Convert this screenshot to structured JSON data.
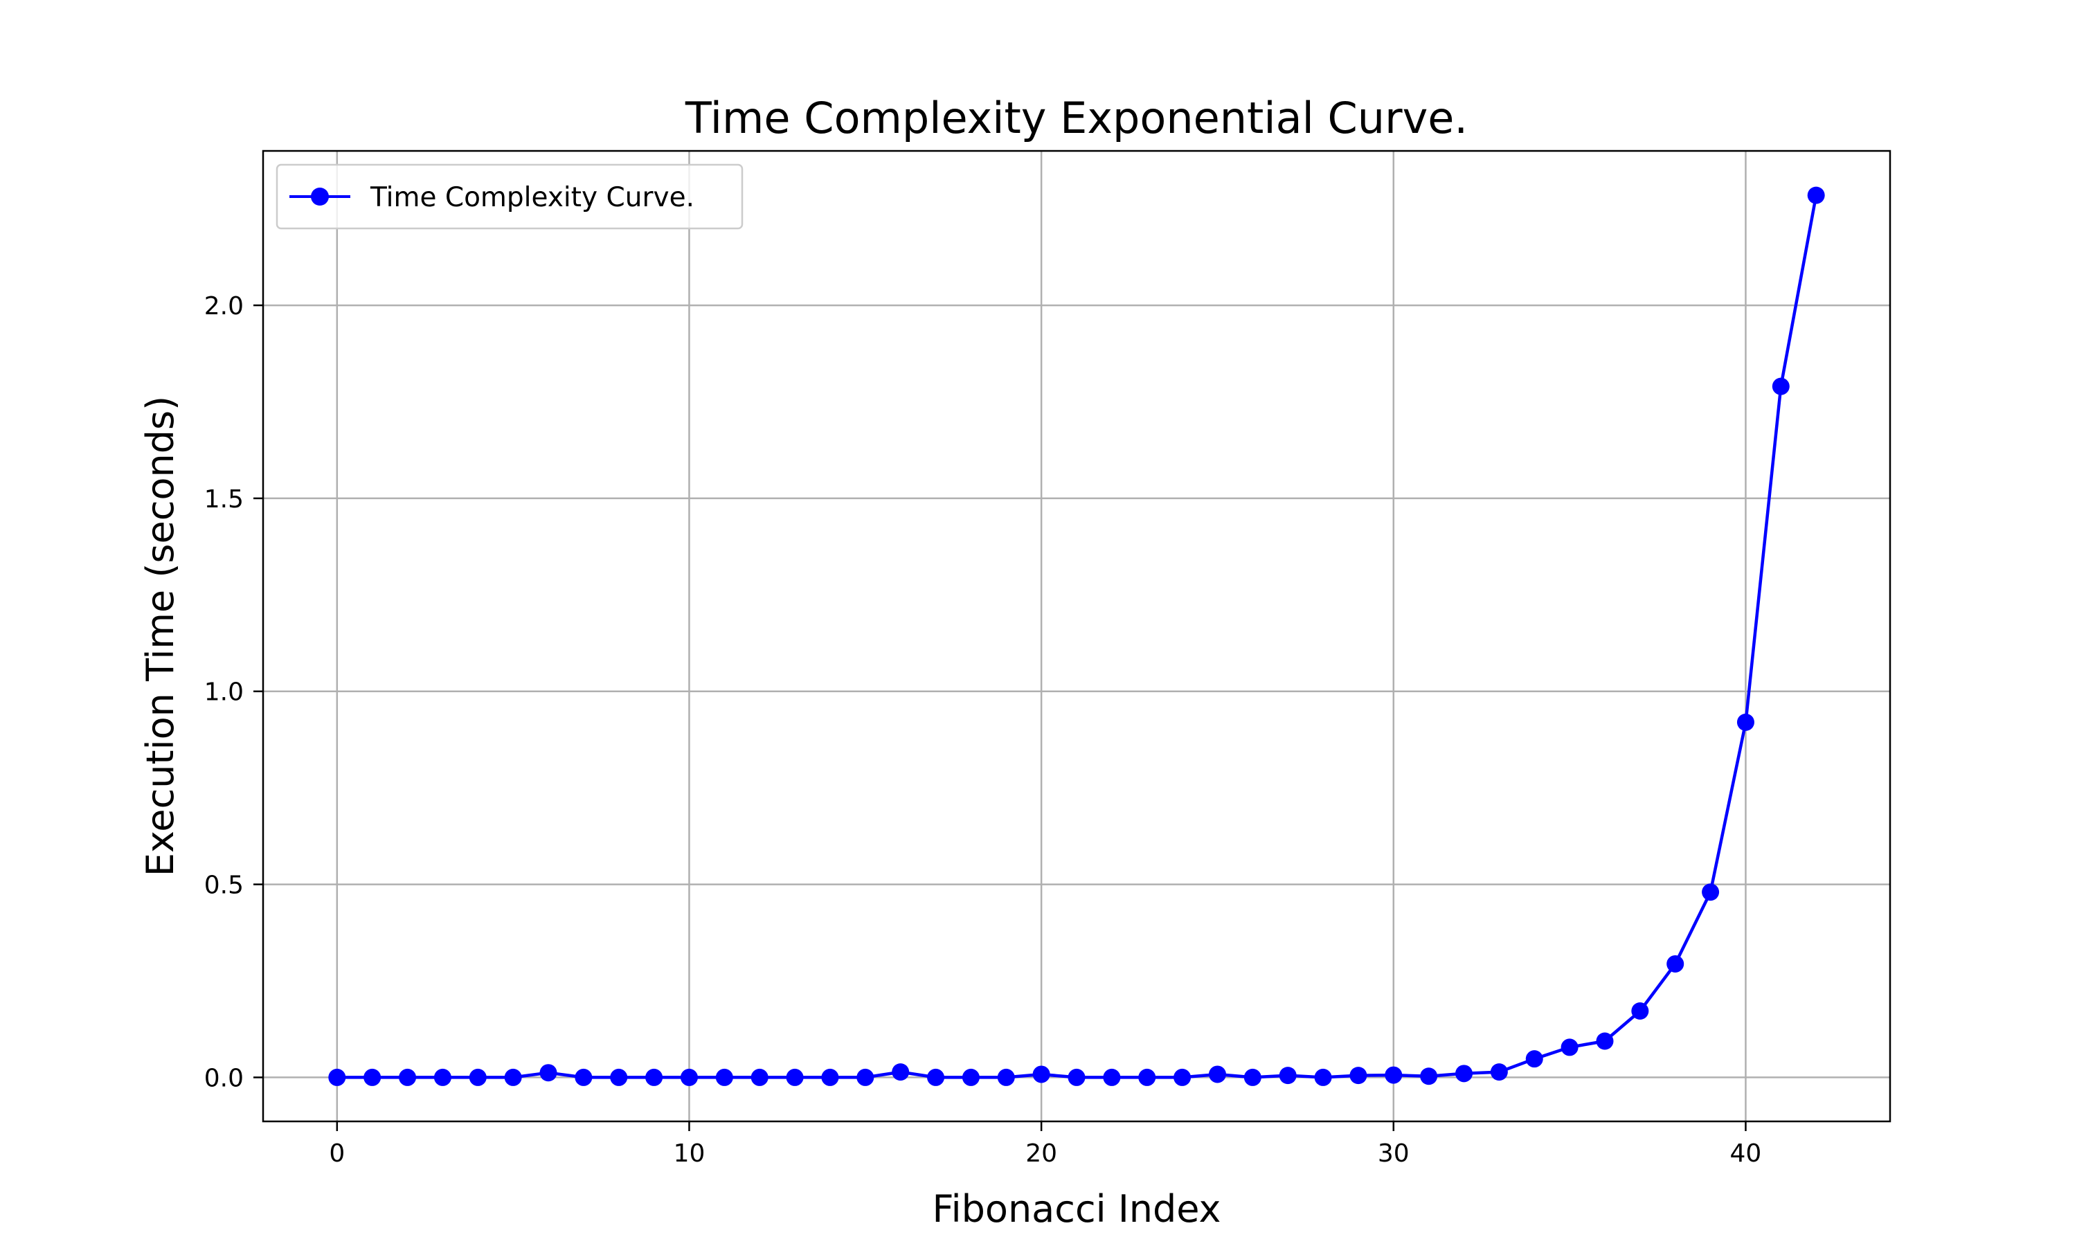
{
  "chart_data": {
    "type": "line",
    "title": "Time Complexity Exponential Curve.",
    "xlabel": "Fibonacci Index",
    "ylabel": "Execution Time (seconds)",
    "xlim": [
      -2.1,
      44.1
    ],
    "ylim": [
      -0.114,
      2.4
    ],
    "xticks": [
      0,
      10,
      20,
      30,
      40
    ],
    "xtick_labels": [
      "0",
      "10",
      "20",
      "30",
      "40"
    ],
    "yticks": [
      0.0,
      0.5,
      1.0,
      1.5,
      2.0
    ],
    "ytick_labels": [
      "0.0",
      "0.5",
      "1.0",
      "1.5",
      "2.0"
    ],
    "grid": true,
    "legend": {
      "position": "upper-left",
      "entries": [
        "Time Complexity Curve."
      ]
    },
    "series": [
      {
        "name": "Time Complexity Curve.",
        "color": "#0000ff",
        "marker": "circle",
        "x": [
          0,
          1,
          2,
          3,
          4,
          5,
          6,
          7,
          8,
          9,
          10,
          11,
          12,
          13,
          14,
          15,
          16,
          17,
          18,
          19,
          20,
          21,
          22,
          23,
          24,
          25,
          26,
          27,
          28,
          29,
          30,
          31,
          32,
          33,
          34,
          35,
          36,
          37,
          38,
          39,
          40,
          41,
          42
        ],
        "y": [
          0.0,
          0.0,
          0.0,
          0.0,
          0.0,
          0.0,
          0.012,
          0.0,
          0.0,
          0.0,
          0.0,
          0.0,
          0.0,
          0.0,
          0.0,
          0.0,
          0.014,
          0.0,
          0.0,
          0.0,
          0.008,
          0.0,
          0.0,
          0.0,
          0.0,
          0.008,
          0.0,
          0.005,
          0.0,
          0.005,
          0.006,
          0.003,
          0.01,
          0.014,
          0.048,
          0.078,
          0.094,
          0.172,
          0.294,
          0.48,
          0.92,
          1.79,
          2.285
        ]
      }
    ]
  }
}
